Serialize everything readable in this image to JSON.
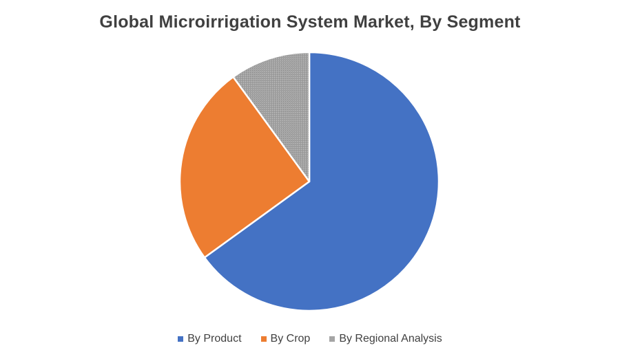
{
  "chart_data": {
    "type": "pie",
    "title": "Global Microirrigation System Market, By Segment",
    "categories": [
      "By Product",
      "By Crop",
      "By Regional Analysis"
    ],
    "values": [
      65,
      25,
      10
    ],
    "colors": [
      "#4472c4",
      "#ed7d31",
      "#a5a5a5"
    ],
    "start_angle": "12 o'clock",
    "direction": "clockwise",
    "legend": "bottom"
  }
}
